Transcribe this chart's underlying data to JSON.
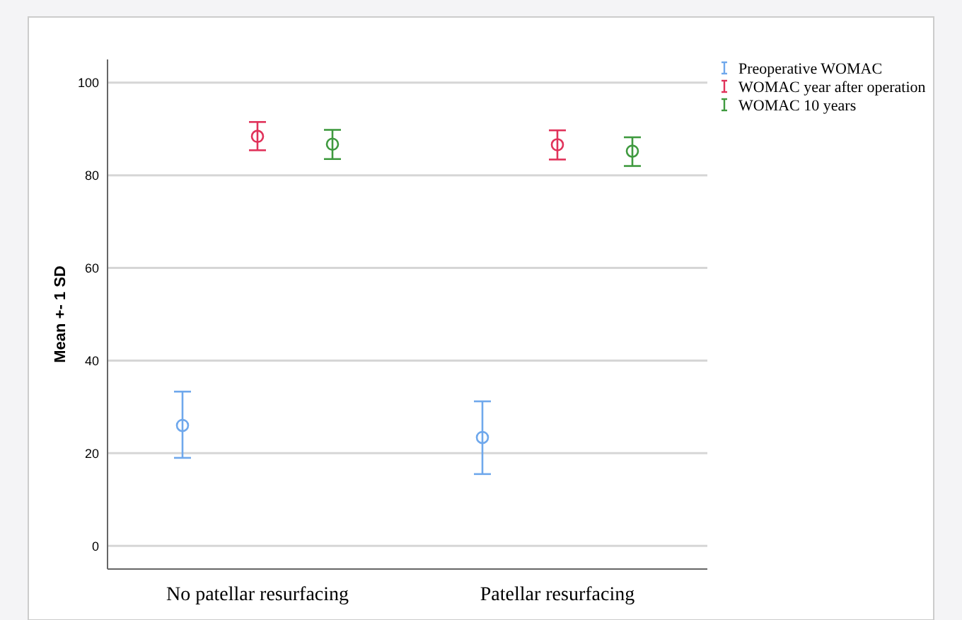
{
  "chart_data": {
    "type": "scatter",
    "ylabel": "Mean +- 1 SD",
    "categories": [
      "No patellar resurfacing",
      "Patellar resurfacing"
    ],
    "series": [
      {
        "name": "Preoperative WOMAC",
        "color": "#6fa8ec",
        "values": [
          26,
          23.4
        ],
        "errors": [
          [
            19,
            33.3
          ],
          [
            15.5,
            31.2
          ]
        ]
      },
      {
        "name": "WOMAC year after operation",
        "color": "#e0325a",
        "values": [
          88.4,
          86.6
        ],
        "errors": [
          [
            85.4,
            91.5
          ],
          [
            83.4,
            89.7
          ]
        ]
      },
      {
        "name": "WOMAC 10 years",
        "color": "#3f9a3f",
        "values": [
          86.7,
          85.2
        ],
        "errors": [
          [
            83.5,
            89.8
          ],
          [
            82,
            88.2
          ]
        ]
      }
    ],
    "ylim": [
      -5,
      105
    ],
    "yticks": [
      0,
      20,
      40,
      60,
      80,
      100
    ],
    "grid": "y",
    "legend": "top right",
    "marker": "circle"
  }
}
